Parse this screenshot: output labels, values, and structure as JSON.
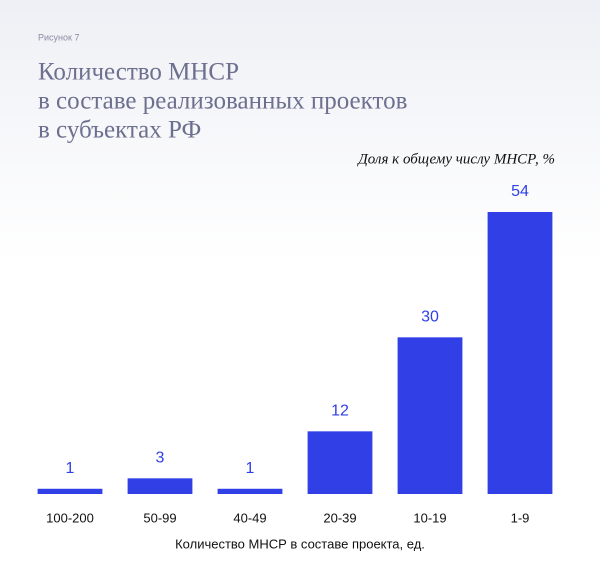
{
  "figure_label": "Рисунок 7",
  "chart_data": {
    "type": "bar",
    "title": [
      "Количество МНСР",
      "в составе реализованных проектов",
      "в субъектах РФ"
    ],
    "subtitle": "Доля к общему числу МНСР, %",
    "x_label": "Количество  МНСР в составе проекта, ед.",
    "categories": [
      "100-200",
      "50-99",
      "40-49",
      "20-39",
      "10-19",
      "1-9"
    ],
    "values": [
      1,
      3,
      1,
      12,
      30,
      54
    ],
    "color": "#3040e6"
  }
}
